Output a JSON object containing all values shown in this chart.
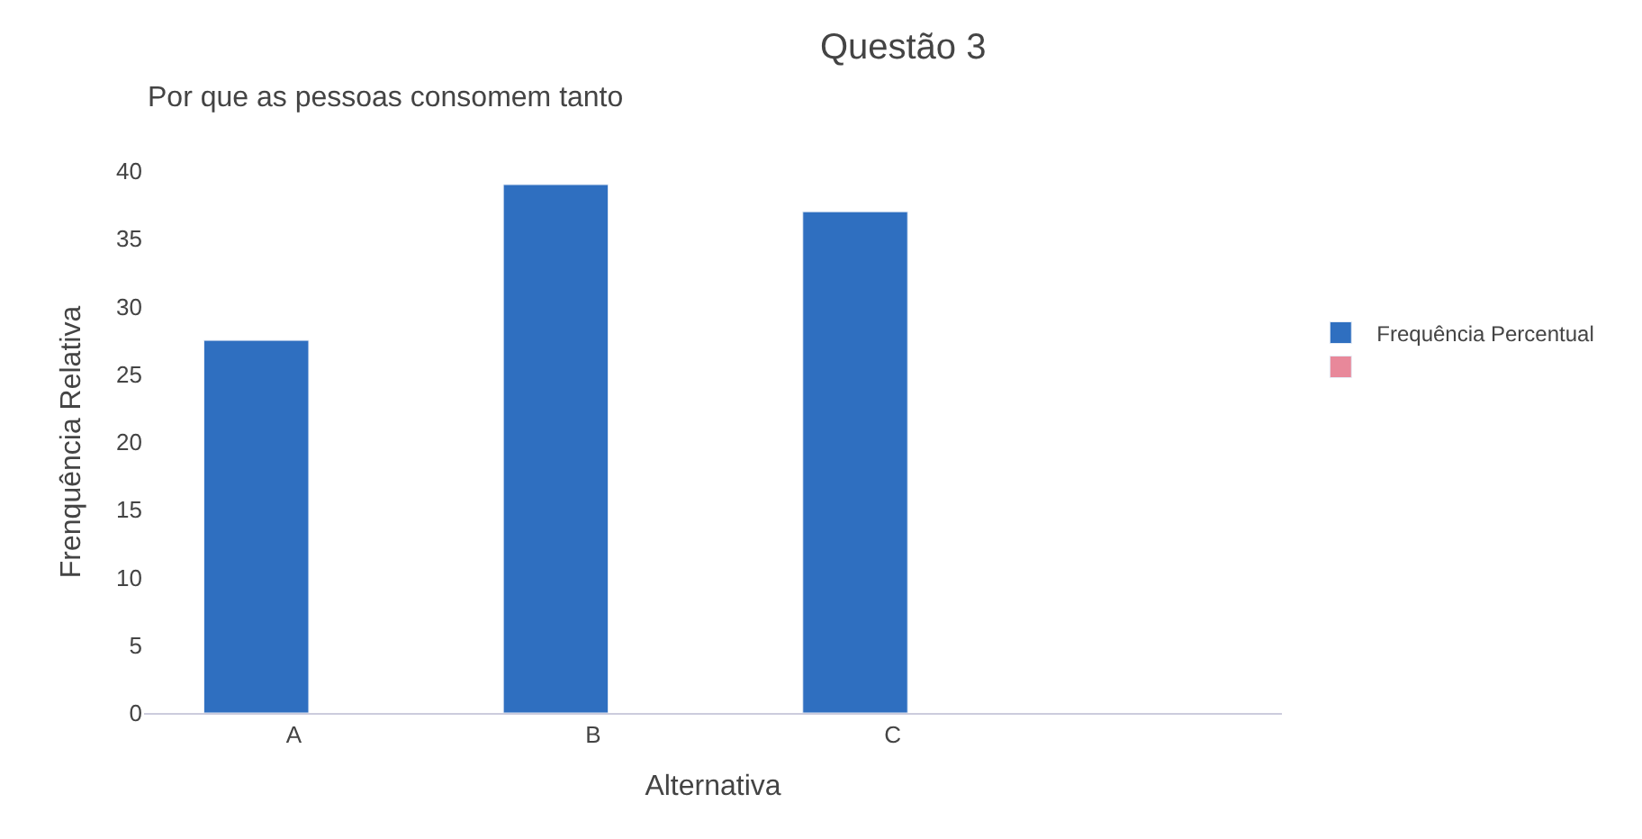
{
  "chart_data": {
    "type": "bar",
    "title": "Questão 3",
    "subtitle": "Por que as pessoas consomem tanto",
    "xlabel": "Alternativa",
    "ylabel": "Frenquência Relativa",
    "categories": [
      "A",
      "B",
      "C"
    ],
    "series": [
      {
        "name": "Frequência Percentual",
        "color": "#2f6fc0",
        "values": [
          27.5,
          39,
          37
        ]
      },
      {
        "color": "#e8889a",
        "values": [
          null,
          null,
          null
        ]
      }
    ],
    "ylim": [
      0,
      40
    ],
    "yticks": [
      0,
      5,
      10,
      15,
      20,
      25,
      30,
      35,
      40
    ],
    "legend": "right"
  }
}
